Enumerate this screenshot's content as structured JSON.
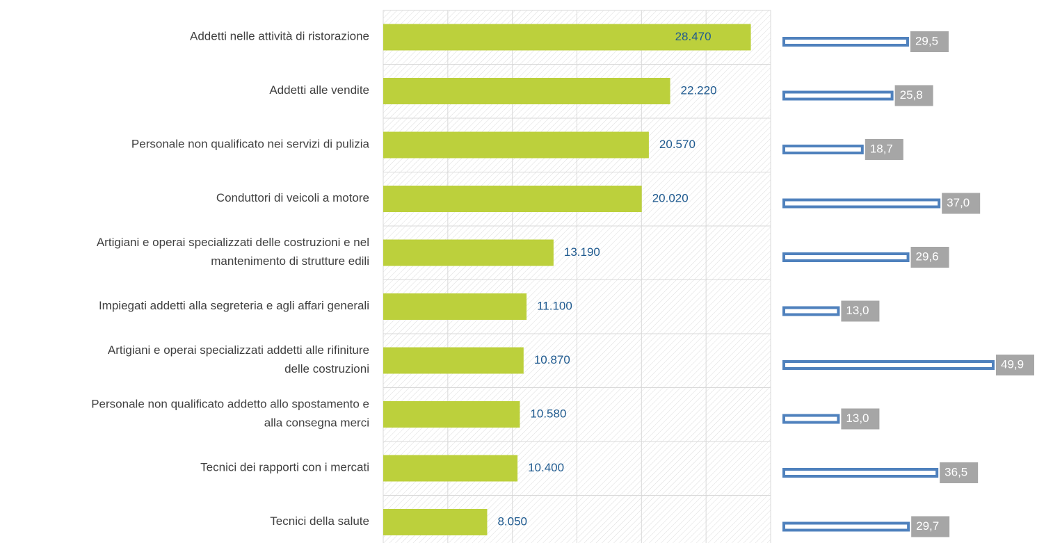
{
  "chart_data": {
    "type": "bar",
    "horizontal": true,
    "categories": [
      "Addetti nelle attività di ristorazione",
      "Addetti alle vendite",
      "Personale non qualificato nei servizi di pulizia",
      "Conduttori di veicoli a motore",
      "Artigiani e operai specializzati delle costruzioni e nel\nmantenimento di strutture edili",
      "Impiegati addetti alla segreteria e agli affari generali",
      "Artigiani e operai specializzati addetti alle rifiniture\ndelle costruzioni",
      "Personale non qualificato addetto allo spostamento e\nalla consegna merci",
      "Tecnici dei rapporti con i mercati",
      "Tecnici della salute"
    ],
    "series": [
      {
        "color": "#bcd03c",
        "values": [
          28470,
          22220,
          20570,
          20020,
          13190,
          11100,
          10870,
          10580,
          10400,
          8050
        ],
        "value_labels": [
          "28.470",
          "22.220",
          "20.570",
          "20.020",
          "13.190",
          "11.100",
          "10.870",
          "10.580",
          "10.400",
          "8.050"
        ]
      },
      {
        "color": "#4f81bd",
        "axis": "x2",
        "values": [
          29.5,
          25.8,
          18.7,
          37.0,
          29.6,
          13.0,
          49.9,
          13.0,
          36.5,
          29.7
        ],
        "value_labels": [
          "29,5",
          "25,8",
          "18,7",
          "37,0",
          "29,6",
          "13,0",
          "49,9",
          "13,0",
          "36,5",
          "29,7"
        ]
      }
    ],
    "xlim": [
      0,
      30000
    ],
    "xticks": [
      0,
      5000,
      10000,
      15000,
      20000,
      25000,
      30000
    ],
    "x2lim": [
      0,
      50
    ],
    "grid": true
  }
}
